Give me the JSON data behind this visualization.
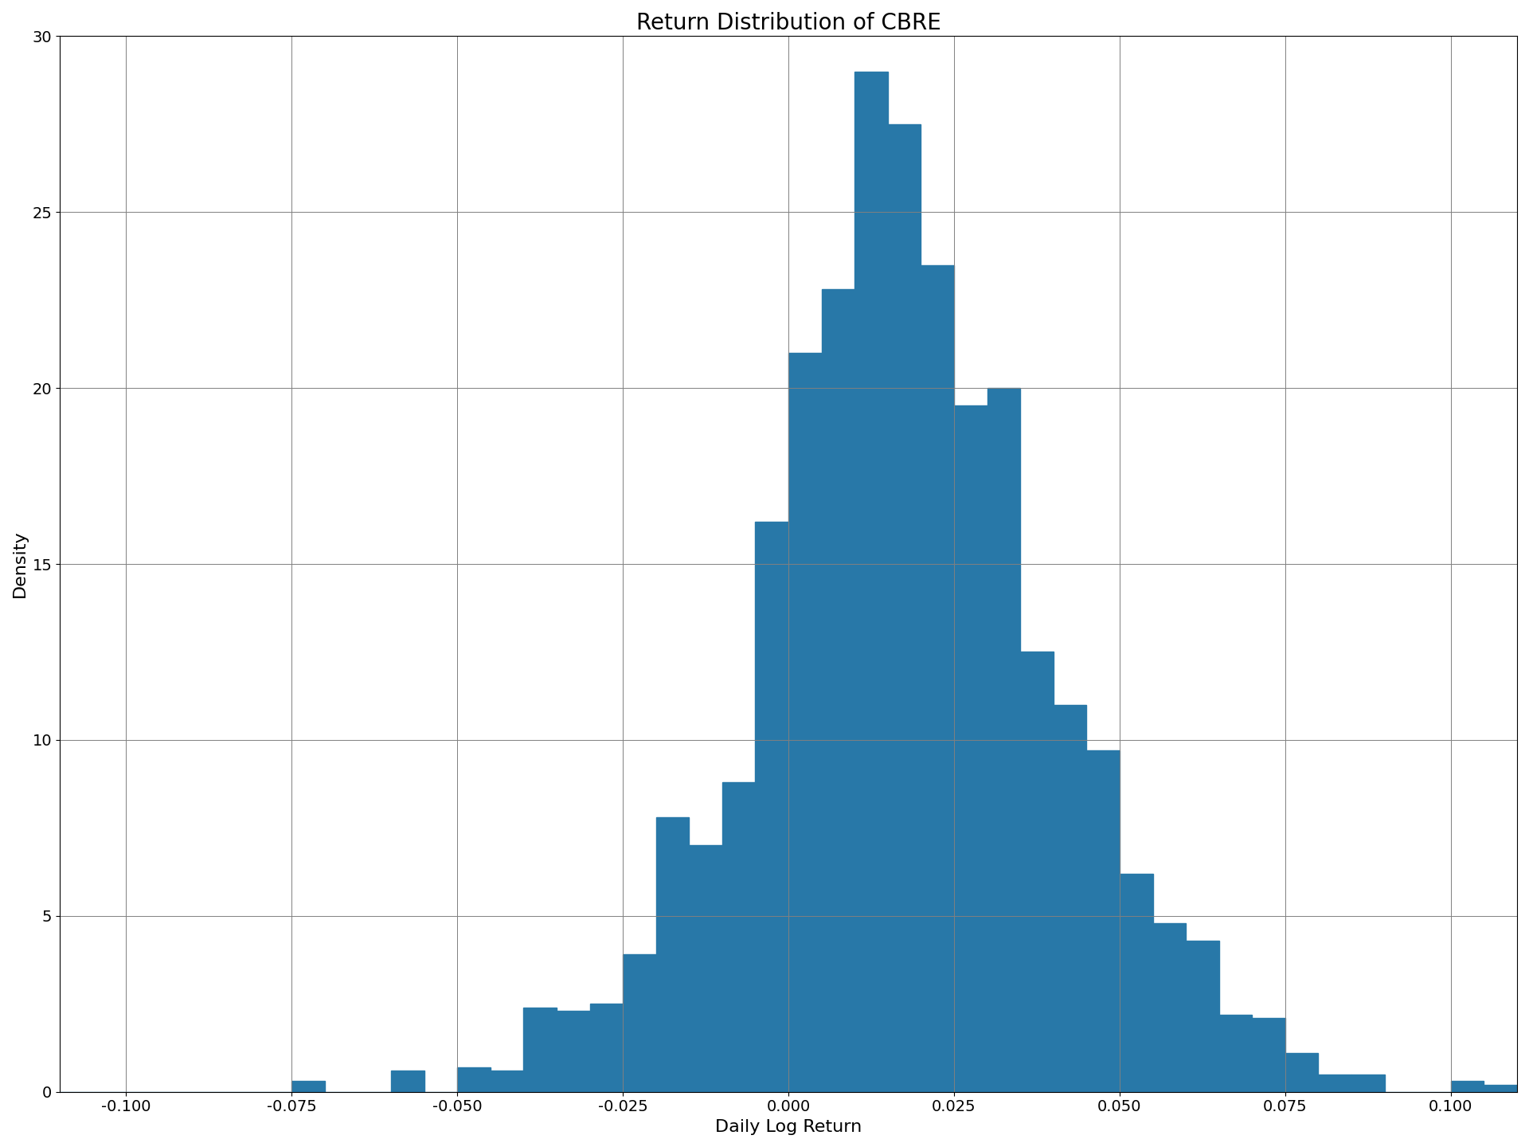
{
  "title": "Return Distribution of CBRE",
  "xlabel": "Daily Log Return",
  "ylabel": "Density",
  "bar_color": "#2878a8",
  "xlim": [
    -0.11,
    0.11
  ],
  "ylim": [
    0,
    30
  ],
  "xticks": [
    -0.1,
    -0.075,
    -0.05,
    -0.025,
    0.0,
    0.025,
    0.05,
    0.075,
    0.1
  ],
  "xtick_labels": [
    "-0.100",
    "-0.075",
    "-0.050",
    "-0.025",
    "0.000",
    "0.025",
    "0.050",
    "0.075",
    "0.100"
  ],
  "yticks": [
    0,
    5,
    10,
    15,
    20,
    25,
    30
  ],
  "grid": true,
  "bin_width": 0.005,
  "bin_starts": [
    -0.11,
    -0.105,
    -0.1,
    -0.095,
    -0.09,
    -0.085,
    -0.08,
    -0.075,
    -0.07,
    -0.065,
    -0.06,
    -0.055,
    -0.05,
    -0.045,
    -0.04,
    -0.035,
    -0.03,
    -0.025,
    -0.02,
    -0.015,
    -0.01,
    -0.005,
    0.0,
    0.005,
    0.01,
    0.015,
    0.02,
    0.025,
    0.03,
    0.035,
    0.04,
    0.045,
    0.05,
    0.055,
    0.06,
    0.065,
    0.07,
    0.075,
    0.08,
    0.085,
    0.09,
    0.095,
    0.1,
    0.105
  ],
  "densities": [
    0.0,
    0.0,
    0.0,
    0.0,
    0.0,
    0.0,
    0.0,
    0.3,
    0.0,
    0.0,
    0.6,
    0.0,
    0.7,
    0.6,
    2.4,
    2.3,
    2.5,
    3.9,
    7.8,
    7.0,
    8.8,
    16.2,
    21.0,
    22.8,
    29.0,
    27.5,
    23.5,
    19.5,
    20.0,
    12.5,
    11.0,
    9.7,
    6.2,
    4.8,
    4.3,
    2.2,
    2.1,
    1.1,
    0.5,
    0.5,
    0.0,
    0.0,
    0.3,
    0.2
  ],
  "title_fontsize": 20,
  "label_fontsize": 16,
  "tick_fontsize": 14
}
